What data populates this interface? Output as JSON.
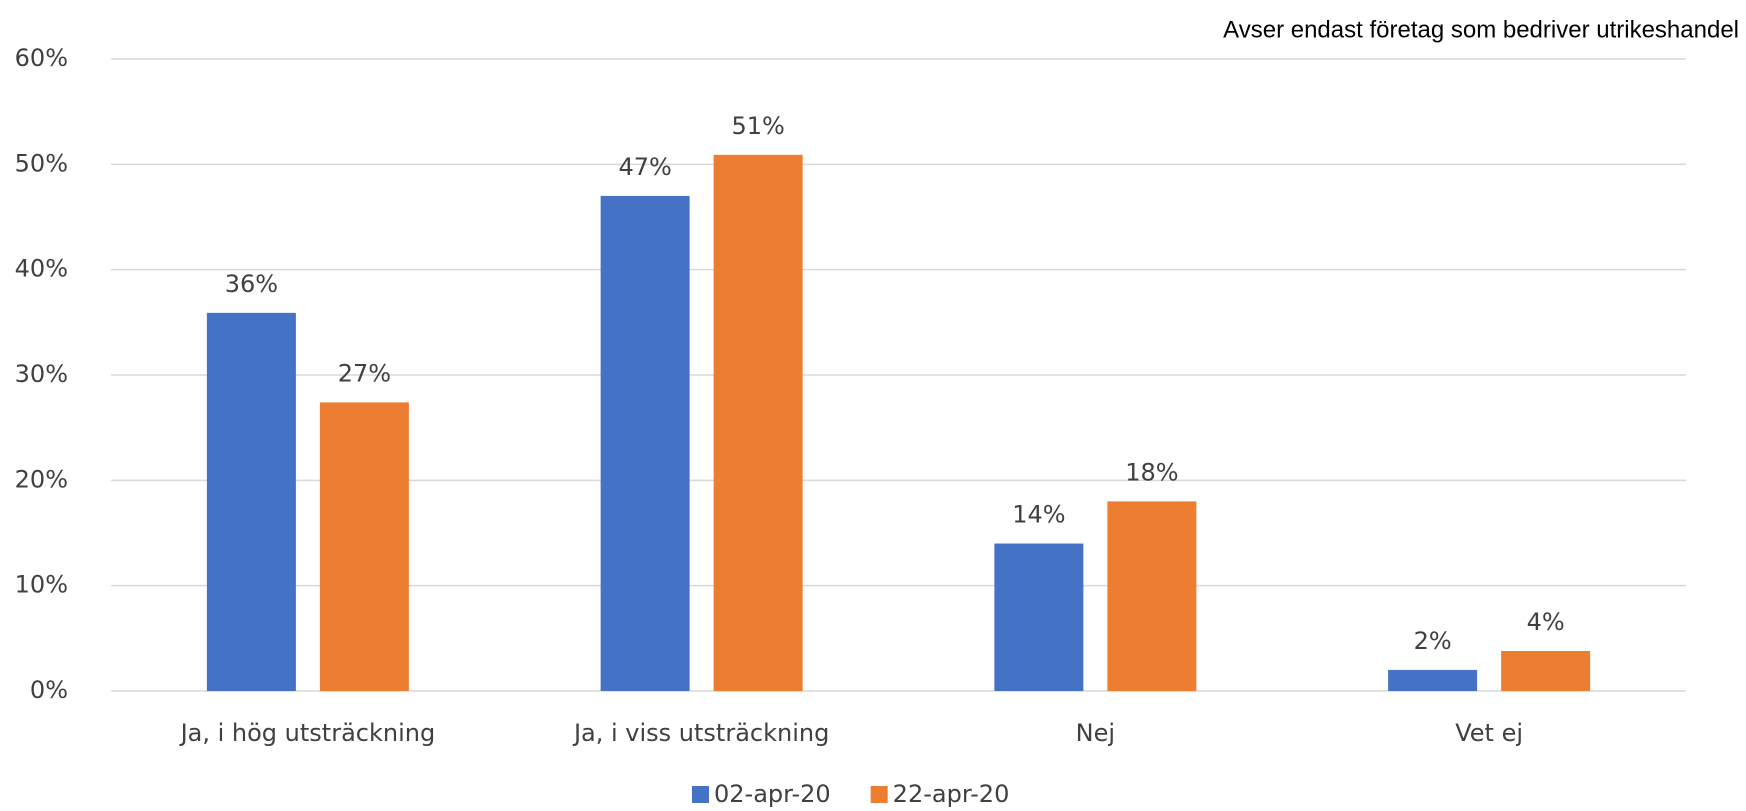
{
  "chart_data": {
    "type": "bar",
    "annotation": "Avser endast företag som bedriver utrikeshandel",
    "categories": [
      "Ja, i hög utsträckning",
      "Ja, i viss utsträckning",
      "Nej",
      "Vet ej"
    ],
    "series": [
      {
        "name": "02-apr-20",
        "color": "#4472c4",
        "values": [
          35.9,
          47,
          14,
          2
        ],
        "value_labels": [
          "36%",
          "47%",
          "14%",
          "2%"
        ]
      },
      {
        "name": "22-apr-20",
        "color": "#ed7d31",
        "values": [
          27.4,
          50.9,
          18,
          3.8
        ],
        "value_labels": [
          "27%",
          "51%",
          "18%",
          "4%"
        ]
      }
    ],
    "ylim": [
      0,
      60
    ],
    "yticks": [
      {
        "value": 0,
        "label": "0%"
      },
      {
        "value": 10,
        "label": "10%"
      },
      {
        "value": 20,
        "label": "20%"
      },
      {
        "value": 30,
        "label": "30%"
      },
      {
        "value": 40,
        "label": "40%"
      },
      {
        "value": 50,
        "label": "50%"
      },
      {
        "value": 60,
        "label": "60%"
      }
    ],
    "grid": true,
    "legend": "bottom"
  }
}
